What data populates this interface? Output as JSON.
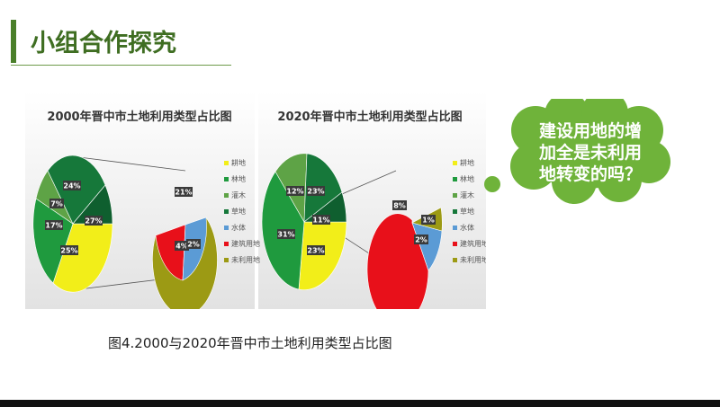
{
  "page": {
    "title": "小组合作探究",
    "caption": "图4.2000与2020年晋中市土地利用类型占比图"
  },
  "bubble": {
    "lines": [
      "建设用地的增",
      "加全是未利用",
      "地转变的吗？"
    ]
  },
  "chart_data": [
    {
      "type": "pie",
      "title": "2000年晋中市土地利用类型占比图",
      "legend_position": "right",
      "legend": [
        "耕地",
        "林地",
        "灌木",
        "草地",
        "水体",
        "建筑用地",
        "未利用地"
      ],
      "colors": {
        "耕地": "#f2ee19",
        "林地": "#1f9a3e",
        "灌木": "#5ea346",
        "草地": "#16783a",
        "水体": "#5b9bd5",
        "建筑用地": "#e8101a",
        "未利用地": "#9c9a14"
      },
      "main_slices": [
        {
          "name": "耕地",
          "value": 25,
          "label": "25%"
        },
        {
          "name": "林地",
          "value": 17,
          "label": "17%"
        },
        {
          "name": "灌木",
          "value": 7,
          "label": "7%"
        },
        {
          "name": "草地",
          "value": 24,
          "label": "24%"
        },
        {
          "name": "草地",
          "value": 27,
          "label": "27%"
        }
      ],
      "secondary_slices": [
        {
          "name": "未利用地",
          "value": 21,
          "label": "21%"
        },
        {
          "name": "建筑用地",
          "value": 4,
          "label": "4%"
        },
        {
          "name": "水体",
          "value": 2,
          "label": "2%"
        }
      ]
    },
    {
      "type": "pie",
      "title": "2020年晋中市土地利用类型占比图",
      "legend_position": "right",
      "legend": [
        "耕地",
        "林地",
        "灌木",
        "草地",
        "水体",
        "建筑用地",
        "未利用地"
      ],
      "colors": {
        "耕地": "#f2ee19",
        "林地": "#1f9a3e",
        "灌木": "#5ea346",
        "草地": "#16783a",
        "水体": "#5b9bd5",
        "建筑用地": "#e8101a",
        "未利用地": "#9c9a14"
      },
      "main_slices": [
        {
          "name": "耕地",
          "value": 23,
          "label": "23%"
        },
        {
          "name": "林地",
          "value": 31,
          "label": "31%"
        },
        {
          "name": "灌木",
          "value": 12,
          "label": "12%"
        },
        {
          "name": "草地",
          "value": 23,
          "label": "23%"
        },
        {
          "name": "草地",
          "value": 11,
          "label": "11%"
        }
      ],
      "secondary_slices": [
        {
          "name": "建筑用地",
          "value": 8,
          "label": "8%"
        },
        {
          "name": "未利用地",
          "value": 1,
          "label": "1%"
        },
        {
          "name": "水体",
          "value": 2,
          "label": "2%"
        }
      ]
    }
  ]
}
